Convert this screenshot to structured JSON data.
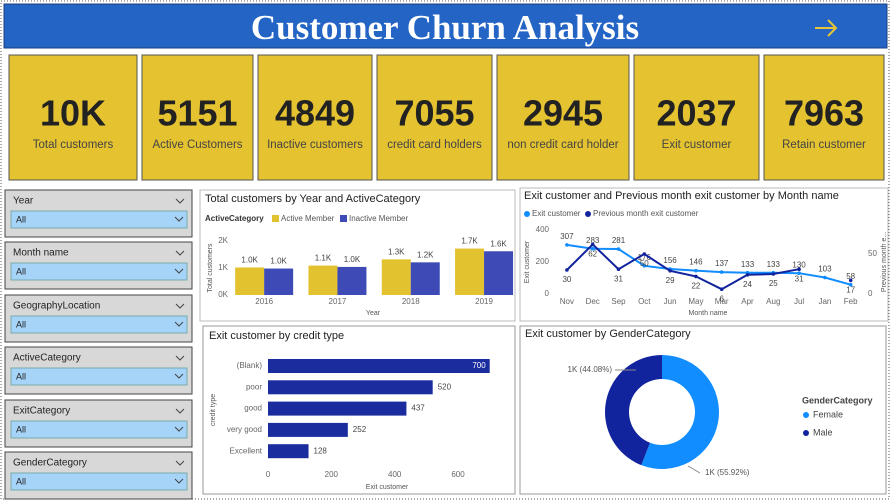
{
  "header": {
    "title": "Customer Churn Analysis"
  },
  "kpis": [
    {
      "value": "10K",
      "label": "Total customers"
    },
    {
      "value": 5151,
      "label": "Active Customers"
    },
    {
      "value": 4849,
      "label": "Inactive customers"
    },
    {
      "value": 7055,
      "label": "credit card holders"
    },
    {
      "value": 2945,
      "label": "non credit card holder"
    },
    {
      "value": 2037,
      "label": "Exit customer"
    },
    {
      "value": 7963,
      "label": "Retain customer"
    }
  ],
  "slicers": [
    {
      "title": "Year",
      "value": "All"
    },
    {
      "title": "Month name",
      "value": "All"
    },
    {
      "title": "GeographyLocation",
      "value": "All"
    },
    {
      "title": "ActiveCategory",
      "value": "All"
    },
    {
      "title": "ExitCategory",
      "value": "All"
    },
    {
      "title": "GenderCategory",
      "value": "All"
    }
  ],
  "chart_data": [
    {
      "type": "bar",
      "title": "Total customers by Year and ActiveCategory",
      "legend_title": "ActiveCategory",
      "legend": "top-left",
      "categories": [
        "2016",
        "2017",
        "2018",
        "2019"
      ],
      "x_label": "Year",
      "y_label": "Total customers",
      "ylim": [
        0,
        2000
      ],
      "yticks": [
        {
          "value": 0,
          "label": "0K"
        },
        {
          "value": 1000,
          "label": "1K"
        },
        {
          "value": 2000,
          "label": "2K"
        }
      ],
      "series": [
        {
          "name": "Active Member",
          "color": "#e3c22f",
          "values": [
            1020,
            1090,
            1320,
            1720
          ],
          "value_labels": [
            "1.0K",
            "1.1K",
            "1.3K",
            "1.7K"
          ]
        },
        {
          "name": "Inactive Member",
          "color": "#3e4bb6",
          "values": [
            980,
            1040,
            1210,
            1620
          ],
          "value_labels": [
            "1.0K",
            "1.0K",
            "1.2K",
            "1.6K"
          ]
        }
      ]
    },
    {
      "type": "line",
      "title": "Exit customer and Previous month exit customer by Month name",
      "legend": "top-left",
      "categories": [
        "Nov",
        "Dec",
        "Sep",
        "Oct",
        "Jun",
        "May",
        "Mar",
        "Apr",
        "Aug",
        "Jul",
        "Jan",
        "Feb"
      ],
      "x_label": "Month name",
      "y_label": "Exit customer",
      "y2_label": "Previous month e...",
      "ylim": [
        0,
        400
      ],
      "yticks": [
        0,
        200,
        400
      ],
      "y2lim": [
        0,
        80
      ],
      "y2ticks": [
        0,
        50
      ],
      "series": [
        {
          "name": "Exit customer",
          "color": "#118dff",
          "values": [
            307,
            283,
            281,
            176,
            156,
            146,
            137,
            133,
            133,
            130,
            103,
            58
          ]
        },
        {
          "name": "Previous month exit customer",
          "color": "#12239e",
          "axis": "y2",
          "values": [
            30,
            62,
            31,
            50,
            29,
            22,
            6,
            24,
            25,
            31,
            null,
            17
          ]
        }
      ]
    },
    {
      "type": "hbar",
      "title": "Exit customer by credit type",
      "color": "#1a2c9e",
      "categories": [
        "(Blank)",
        "poor",
        "good",
        "very good",
        "Excellent"
      ],
      "values": [
        700,
        520,
        437,
        252,
        128
      ],
      "x_label": "Exit customer",
      "y_label": "credit type",
      "xlim": [
        0,
        700
      ],
      "xticks": [
        0,
        200,
        400,
        600
      ]
    },
    {
      "type": "donut",
      "title": "Exit customer by GenderCategory",
      "legend_title": "GenderCategory",
      "legend": "right",
      "categories": [
        "Female",
        "Male"
      ],
      "values": [
        1139,
        898
      ],
      "value_labels": [
        "1K (55.92%)",
        "1K (44.08%)"
      ],
      "colors": [
        "#118dff",
        "#12239e"
      ]
    }
  ]
}
